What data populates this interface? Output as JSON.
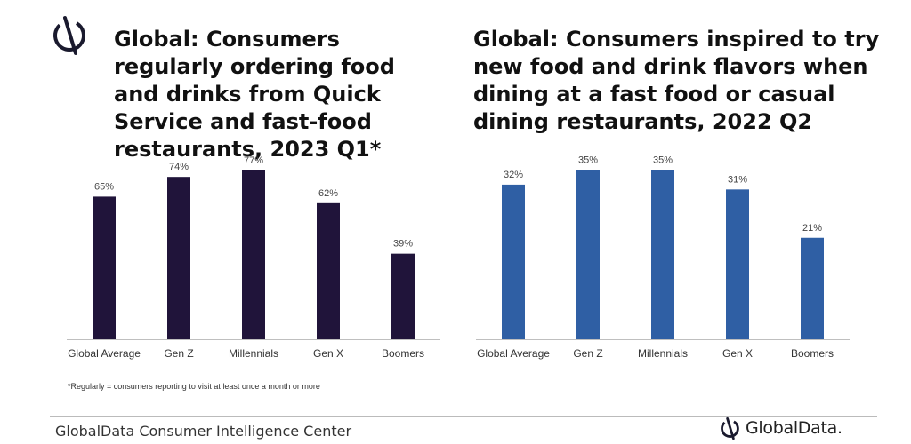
{
  "left_title": "Global: Consumers regularly ordering food and drinks from Quick Service and fast-food restaurants, 2023 Q1*",
  "right_title": "Global: Consumers inspired to try new food and drink flavors when dining at a fast food or casual dining restaurants, 2022 Q2",
  "footnote": "*Regularly = consumers reporting to visit at least once a month or more",
  "footer": {
    "source": "GlobalData Consumer Intelligence Center",
    "brand": "GlobalData."
  },
  "colors": {
    "left_bar": "#20143a",
    "right_bar": "#2f5fa4"
  },
  "chart_data": [
    {
      "type": "bar",
      "title": "Global: Consumers regularly ordering food and drinks from Quick Service and fast-food restaurants, 2023 Q1*",
      "categories": [
        "Global Average",
        "Gen Z",
        "Millennials",
        "Gen X",
        "Boomers"
      ],
      "values": [
        65,
        74,
        77,
        62,
        39
      ],
      "labels": [
        "65%",
        "74%",
        "77%",
        "62%",
        "39%"
      ],
      "ylim": [
        0,
        85
      ],
      "grid": false,
      "color": "#20143a"
    },
    {
      "type": "bar",
      "title": "Global: Consumers inspired to try new food and drink flavors when dining at a fast food or casual dining restaurants, 2022 Q2",
      "categories": [
        "Global Average",
        "Gen Z",
        "Millennials",
        "Gen X",
        "Boomers"
      ],
      "values": [
        32,
        35,
        35,
        31,
        21
      ],
      "labels": [
        "32%",
        "35%",
        "35%",
        "31%",
        "21%"
      ],
      "ylim": [
        0,
        38.6
      ],
      "grid": false,
      "color": "#2f5fa4"
    }
  ]
}
